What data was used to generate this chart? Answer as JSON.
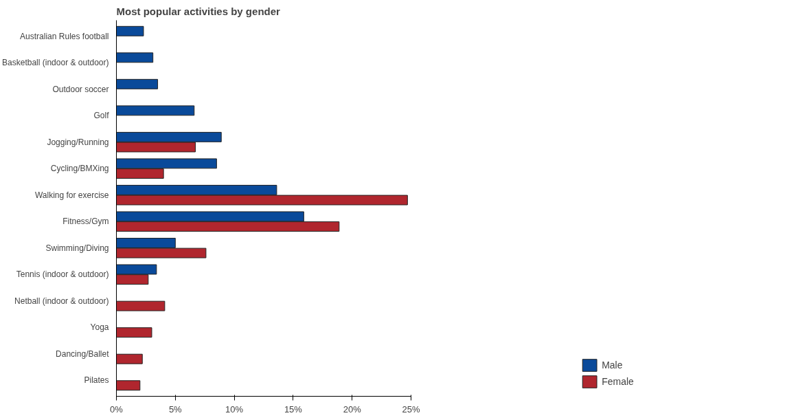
{
  "chart_data": {
    "type": "bar",
    "orientation": "horizontal",
    "title": "Most popular activities by gender",
    "categories": [
      "Australian Rules football",
      "Basketball (indoor & outdoor)",
      "Outdoor soccer",
      "Golf",
      "Jogging/Running",
      "Cycling/BMXing",
      "Walking for exercise",
      "Fitness/Gym",
      "Swimming/Diving",
      "Tennis (indoor & outdoor)",
      "Netball (indoor & outdoor)",
      "Yoga",
      "Dancing/Ballet",
      "Pilates"
    ],
    "series": [
      {
        "name": "Male",
        "color": "#0a4a9a",
        "values": [
          2.3,
          3.1,
          3.5,
          6.6,
          8.9,
          8.5,
          13.6,
          15.9,
          5.0,
          3.4,
          null,
          null,
          null,
          null
        ]
      },
      {
        "name": "Female",
        "color": "#b0262e",
        "values": [
          null,
          null,
          null,
          null,
          6.7,
          4.0,
          24.7,
          18.9,
          7.6,
          2.7,
          4.1,
          3.0,
          2.2,
          2.0
        ]
      }
    ],
    "xlim": [
      0,
      25
    ],
    "xticks": [
      {
        "value": 0,
        "label": "0%"
      },
      {
        "value": 5,
        "label": "5%"
      },
      {
        "value": 10,
        "label": "10%"
      },
      {
        "value": 15,
        "label": "15%"
      },
      {
        "value": 20,
        "label": "20%"
      },
      {
        "value": 25,
        "label": "25%"
      }
    ],
    "grid": false,
    "legend": "bottom right"
  }
}
